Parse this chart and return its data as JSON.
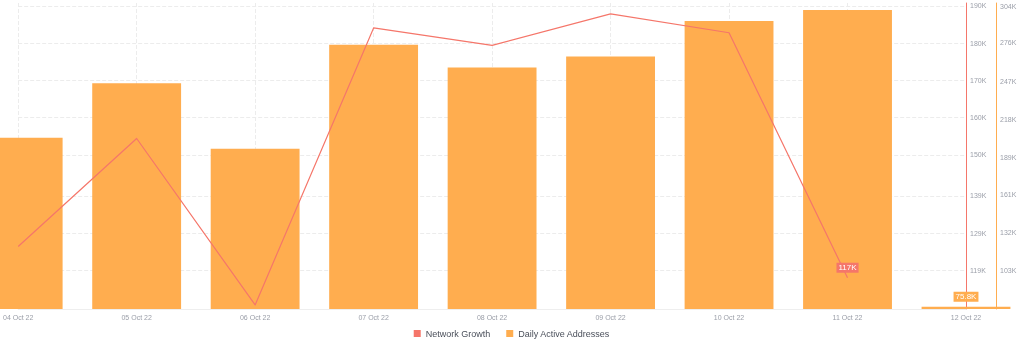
{
  "chart_data": {
    "type": "bar",
    "categories": [
      "04 Oct 22",
      "05 Oct 22",
      "06 Oct 22",
      "07 Oct 22",
      "08 Oct 22",
      "09 Oct 22",
      "10 Oct 22",
      "11 Oct 22",
      "12 Oct 22"
    ],
    "series": [
      {
        "name": "Network Growth",
        "type": "line",
        "axis": "y",
        "color": "#f5766a",
        "values": [
          125.4,
          154.4,
          109.7,
          184.1,
          179.4,
          187.9,
          182.8,
          117,
          null
        ],
        "value_labels": [
          null,
          null,
          null,
          null,
          null,
          null,
          null,
          "117K",
          null
        ]
      },
      {
        "name": "Daily Active Addresses",
        "axis": "y2",
        "color": "#ffad4f",
        "values": [
          204,
          245.3,
          195.6,
          274.6,
          257.3,
          265.6,
          292.7,
          301,
          75.8
        ],
        "value_labels": [
          null,
          null,
          null,
          null,
          null,
          null,
          null,
          null,
          "75.8K"
        ]
      }
    ],
    "ylim": [
      108.6,
      190.8
    ],
    "yticks": [
      {
        "value": 119,
        "label": "119K"
      },
      {
        "value": 129,
        "label": "129K"
      },
      {
        "value": 139,
        "label": "139K"
      },
      {
        "value": 150,
        "label": "150K"
      },
      {
        "value": 160,
        "label": "160K"
      },
      {
        "value": 170,
        "label": "170K"
      },
      {
        "value": 180,
        "label": "180K"
      },
      {
        "value": 190,
        "label": "190K"
      }
    ],
    "y2lim": [
      74,
      306.3
    ],
    "y2ticks": [
      {
        "value": 103,
        "label": "103K"
      },
      {
        "value": 132,
        "label": "132K"
      },
      {
        "value": 161,
        "label": "161K"
      },
      {
        "value": 189,
        "label": "189K"
      },
      {
        "value": 218,
        "label": "218K"
      },
      {
        "value": 247,
        "label": "247K"
      },
      {
        "value": 276,
        "label": "276K"
      },
      {
        "value": 304,
        "label": "304K"
      }
    ],
    "grid": true,
    "legend": "bottom",
    "marker": "none",
    "line_style": "solid"
  }
}
